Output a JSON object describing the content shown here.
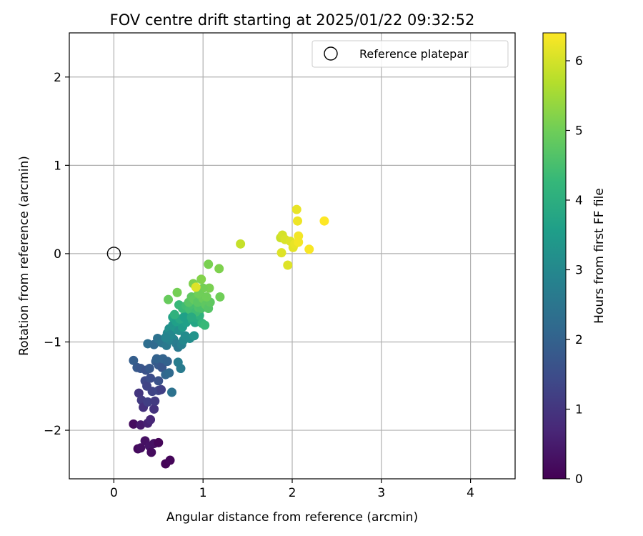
{
  "chart_data": {
    "type": "scatter",
    "title": "FOV centre drift starting at 2025/01/22 09:32:52",
    "xlabel": "Angular distance from reference (arcmin)",
    "ylabel": "Rotation from reference (arcmin)",
    "xlim": [
      -0.5,
      4.5
    ],
    "ylim": [
      -2.55,
      2.5
    ],
    "xticks": [
      0,
      1,
      2,
      3,
      4
    ],
    "yticks": [
      -2,
      -1,
      0,
      1,
      2
    ],
    "xtick_labels": [
      "0",
      "1",
      "2",
      "3",
      "4"
    ],
    "ytick_labels": [
      "−2",
      "−1",
      "0",
      "1",
      "2"
    ],
    "grid": true,
    "legend": {
      "position": "top-right",
      "entries": [
        {
          "label": "Reference platepar",
          "marker": "open-circle"
        }
      ]
    },
    "reference_point": {
      "x": 0,
      "y": 0
    },
    "colorbar": {
      "label": "Hours from first FF file",
      "colormap": "viridis",
      "range": [
        0,
        6.4
      ],
      "ticks": [
        0,
        1,
        2,
        3,
        4,
        5,
        6
      ],
      "tick_labels": [
        "0",
        "1",
        "2",
        "3",
        "4",
        "5",
        "6"
      ]
    },
    "series": [
      {
        "points": [
          {
            "x": 0.22,
            "y": -1.93,
            "c": 0.2
          },
          {
            "x": 0.27,
            "y": -2.21,
            "c": 0.15
          },
          {
            "x": 0.3,
            "y": -2.2,
            "c": 0.25
          },
          {
            "x": 0.3,
            "y": -1.94,
            "c": 0.45
          },
          {
            "x": 0.35,
            "y": -2.12,
            "c": 0.3
          },
          {
            "x": 0.38,
            "y": -1.92,
            "c": 0.6
          },
          {
            "x": 0.4,
            "y": -2.18,
            "c": 0.35
          },
          {
            "x": 0.42,
            "y": -2.25,
            "c": 0.2
          },
          {
            "x": 0.45,
            "y": -2.15,
            "c": 0.3
          },
          {
            "x": 0.5,
            "y": -2.14,
            "c": 0.1
          },
          {
            "x": 0.58,
            "y": -2.38,
            "c": 0.05
          },
          {
            "x": 0.63,
            "y": -2.34,
            "c": 0.1
          },
          {
            "x": 0.41,
            "y": -1.88,
            "c": 0.7
          },
          {
            "x": 0.28,
            "y": -1.58,
            "c": 1.0
          },
          {
            "x": 0.31,
            "y": -1.66,
            "c": 1.1
          },
          {
            "x": 0.33,
            "y": -1.74,
            "c": 0.9
          },
          {
            "x": 0.38,
            "y": -1.68,
            "c": 1.2
          },
          {
            "x": 0.45,
            "y": -1.76,
            "c": 0.95
          },
          {
            "x": 0.46,
            "y": -1.67,
            "c": 1.1
          },
          {
            "x": 0.43,
            "y": -1.56,
            "c": 1.3
          },
          {
            "x": 0.5,
            "y": -1.55,
            "c": 1.35
          },
          {
            "x": 0.53,
            "y": -1.54,
            "c": 1.2
          },
          {
            "x": 0.35,
            "y": -1.44,
            "c": 1.4
          },
          {
            "x": 0.37,
            "y": -1.5,
            "c": 1.3
          },
          {
            "x": 0.41,
            "y": -1.41,
            "c": 1.5
          },
          {
            "x": 0.5,
            "y": -1.44,
            "c": 1.6
          },
          {
            "x": 0.22,
            "y": -1.21,
            "c": 1.9
          },
          {
            "x": 0.26,
            "y": -1.29,
            "c": 1.8
          },
          {
            "x": 0.3,
            "y": -1.3,
            "c": 1.7
          },
          {
            "x": 0.36,
            "y": -1.32,
            "c": 1.6
          },
          {
            "x": 0.4,
            "y": -1.3,
            "c": 1.75
          },
          {
            "x": 0.47,
            "y": -1.22,
            "c": 1.9
          },
          {
            "x": 0.5,
            "y": -1.26,
            "c": 1.8
          },
          {
            "x": 0.54,
            "y": -1.29,
            "c": 1.7
          },
          {
            "x": 0.48,
            "y": -1.19,
            "c": 2.0
          },
          {
            "x": 0.55,
            "y": -1.19,
            "c": 2.05
          },
          {
            "x": 0.6,
            "y": -1.22,
            "c": 2.0
          },
          {
            "x": 0.58,
            "y": -1.37,
            "c": 2.1
          },
          {
            "x": 0.62,
            "y": -1.35,
            "c": 2.2
          },
          {
            "x": 0.65,
            "y": -1.57,
            "c": 2.4
          },
          {
            "x": 0.38,
            "y": -1.02,
            "c": 2.3
          },
          {
            "x": 0.45,
            "y": -1.03,
            "c": 2.2
          },
          {
            "x": 0.49,
            "y": -0.96,
            "c": 2.4
          },
          {
            "x": 0.54,
            "y": -1.01,
            "c": 2.5
          },
          {
            "x": 0.59,
            "y": -1.04,
            "c": 2.6
          },
          {
            "x": 0.63,
            "y": -0.98,
            "c": 2.8
          },
          {
            "x": 0.6,
            "y": -0.9,
            "c": 3.0
          },
          {
            "x": 0.65,
            "y": -0.88,
            "c": 3.1
          },
          {
            "x": 0.67,
            "y": -0.97,
            "c": 2.9
          },
          {
            "x": 0.7,
            "y": -1.02,
            "c": 2.7
          },
          {
            "x": 0.72,
            "y": -1.06,
            "c": 2.6
          },
          {
            "x": 0.76,
            "y": -1.03,
            "c": 2.8
          },
          {
            "x": 0.78,
            "y": -0.98,
            "c": 3.0
          },
          {
            "x": 0.8,
            "y": -0.93,
            "c": 3.1
          },
          {
            "x": 0.72,
            "y": -1.23,
            "c": 2.7
          },
          {
            "x": 0.75,
            "y": -1.3,
            "c": 2.65
          },
          {
            "x": 0.62,
            "y": -0.85,
            "c": 3.2
          },
          {
            "x": 0.66,
            "y": -0.81,
            "c": 3.3
          },
          {
            "x": 0.7,
            "y": -0.85,
            "c": 3.35
          },
          {
            "x": 0.73,
            "y": -0.87,
            "c": 3.2
          },
          {
            "x": 0.77,
            "y": -0.83,
            "c": 3.5
          },
          {
            "x": 0.81,
            "y": -0.78,
            "c": 3.6
          },
          {
            "x": 0.85,
            "y": -0.96,
            "c": 3.1
          },
          {
            "x": 0.9,
            "y": -0.93,
            "c": 3.3
          },
          {
            "x": 0.66,
            "y": -0.72,
            "c": 3.7
          },
          {
            "x": 0.7,
            "y": -0.77,
            "c": 3.6
          },
          {
            "x": 0.74,
            "y": -0.74,
            "c": 3.8
          },
          {
            "x": 0.79,
            "y": -0.71,
            "c": 3.9
          },
          {
            "x": 0.83,
            "y": -0.68,
            "c": 4.0
          },
          {
            "x": 0.88,
            "y": -0.75,
            "c": 3.8
          },
          {
            "x": 0.91,
            "y": -0.78,
            "c": 3.75
          },
          {
            "x": 0.93,
            "y": -0.73,
            "c": 3.9
          },
          {
            "x": 0.96,
            "y": -0.7,
            "c": 4.1
          },
          {
            "x": 0.99,
            "y": -0.79,
            "c": 4.2
          },
          {
            "x": 1.02,
            "y": -0.81,
            "c": 4.3
          },
          {
            "x": 0.68,
            "y": -0.69,
            "c": 4.1
          },
          {
            "x": 0.73,
            "y": -0.58,
            "c": 4.3
          },
          {
            "x": 0.77,
            "y": -0.62,
            "c": 4.3
          },
          {
            "x": 0.81,
            "y": -0.59,
            "c": 4.4
          },
          {
            "x": 0.85,
            "y": -0.63,
            "c": 4.45
          },
          {
            "x": 0.88,
            "y": -0.58,
            "c": 4.5
          },
          {
            "x": 0.92,
            "y": -0.66,
            "c": 4.4
          },
          {
            "x": 0.95,
            "y": -0.61,
            "c": 4.6
          },
          {
            "x": 0.98,
            "y": -0.62,
            "c": 4.55
          },
          {
            "x": 0.84,
            "y": -0.55,
            "c": 4.7
          },
          {
            "x": 0.87,
            "y": -0.49,
            "c": 4.8
          },
          {
            "x": 0.9,
            "y": -0.52,
            "c": 4.85
          },
          {
            "x": 0.94,
            "y": -0.55,
            "c": 4.75
          },
          {
            "x": 0.97,
            "y": -0.47,
            "c": 4.9
          },
          {
            "x": 1.0,
            "y": -0.51,
            "c": 4.95
          },
          {
            "x": 1.03,
            "y": -0.58,
            "c": 4.8
          },
          {
            "x": 1.06,
            "y": -0.62,
            "c": 4.7
          },
          {
            "x": 1.08,
            "y": -0.55,
            "c": 4.8
          },
          {
            "x": 1.04,
            "y": -0.49,
            "c": 5.0
          },
          {
            "x": 1.07,
            "y": -0.39,
            "c": 5.1
          },
          {
            "x": 1.0,
            "y": -0.39,
            "c": 5.05
          },
          {
            "x": 0.98,
            "y": -0.29,
            "c": 5.2
          },
          {
            "x": 0.89,
            "y": -0.34,
            "c": 5.15
          },
          {
            "x": 0.95,
            "y": -0.45,
            "c": 5.0
          },
          {
            "x": 0.61,
            "y": -0.52,
            "c": 4.9
          },
          {
            "x": 0.71,
            "y": -0.44,
            "c": 5.05
          },
          {
            "x": 1.06,
            "y": -0.12,
            "c": 5.1
          },
          {
            "x": 1.18,
            "y": -0.17,
            "c": 5.15
          },
          {
            "x": 1.19,
            "y": -0.49,
            "c": 5.0
          },
          {
            "x": 0.63,
            "y": -0.92,
            "c": 3.0
          },
          {
            "x": 0.58,
            "y": -0.95,
            "c": 2.9
          },
          {
            "x": 0.79,
            "y": -0.72,
            "c": 3.6
          },
          {
            "x": 0.87,
            "y": -0.72,
            "c": 3.9
          },
          {
            "x": 0.92,
            "y": -0.38,
            "c": 6.1
          },
          {
            "x": 1.42,
            "y": 0.11,
            "c": 5.85
          },
          {
            "x": 1.87,
            "y": 0.18,
            "c": 5.9
          },
          {
            "x": 1.89,
            "y": 0.21,
            "c": 6.0
          },
          {
            "x": 1.92,
            "y": 0.16,
            "c": 6.05
          },
          {
            "x": 1.95,
            "y": -0.13,
            "c": 6.1
          },
          {
            "x": 1.98,
            "y": 0.14,
            "c": 6.1
          },
          {
            "x": 2.01,
            "y": 0.07,
            "c": 6.15
          },
          {
            "x": 2.03,
            "y": 0.11,
            "c": 6.2
          },
          {
            "x": 2.05,
            "y": 0.5,
            "c": 6.2
          },
          {
            "x": 2.06,
            "y": 0.37,
            "c": 6.25
          },
          {
            "x": 2.07,
            "y": 0.2,
            "c": 6.3
          },
          {
            "x": 2.07,
            "y": 0.13,
            "c": 6.3
          },
          {
            "x": 1.88,
            "y": 0.01,
            "c": 6.1
          },
          {
            "x": 2.19,
            "y": 0.05,
            "c": 6.35
          },
          {
            "x": 2.36,
            "y": 0.37,
            "c": 6.4
          }
        ]
      }
    ]
  }
}
